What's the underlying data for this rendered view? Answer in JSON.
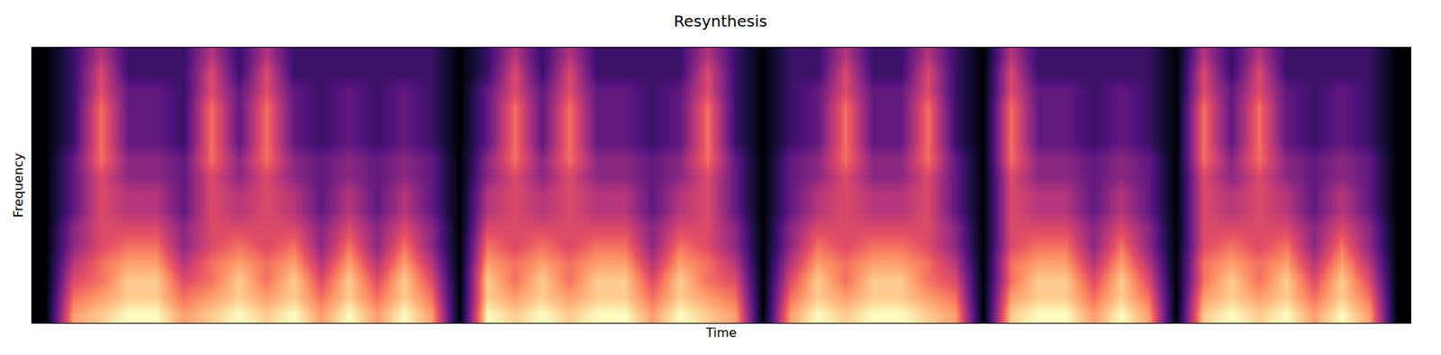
{
  "chart_data": {
    "type": "heatmap",
    "title": "Resynthesis",
    "x_label": "Time",
    "y_label": "Frequency",
    "tick_labels": false,
    "zlim": [
      0,
      10
    ],
    "cells": [
      [
        0,
        8,
        9,
        10,
        10,
        8,
        9,
        10,
        9,
        10,
        8,
        10,
        8,
        10,
        8,
        0,
        10,
        9,
        10,
        9,
        10,
        10,
        8,
        10,
        9,
        8,
        0,
        8,
        10,
        9,
        10,
        10,
        9,
        8,
        0,
        9,
        10,
        10,
        8,
        10,
        8,
        0,
        9,
        10,
        9,
        10,
        8,
        10,
        8,
        0
      ],
      [
        0,
        7,
        8,
        9,
        9,
        7,
        8,
        9,
        8,
        9,
        7,
        9,
        7,
        9,
        7,
        0,
        9,
        8,
        9,
        8,
        9,
        9,
        7,
        9,
        8,
        7,
        0,
        7,
        9,
        8,
        9,
        9,
        8,
        7,
        0,
        8,
        9,
        9,
        7,
        9,
        7,
        0,
        8,
        9,
        8,
        9,
        7,
        9,
        7,
        0
      ],
      [
        0,
        6,
        7,
        9,
        9,
        6,
        7,
        9,
        7,
        9,
        6,
        9,
        6,
        9,
        6,
        0,
        9,
        7,
        9,
        7,
        9,
        9,
        6,
        9,
        7,
        6,
        0,
        6,
        9,
        7,
        9,
        9,
        7,
        6,
        0,
        7,
        9,
        9,
        6,
        9,
        6,
        0,
        7,
        9,
        7,
        9,
        6,
        9,
        6,
        0
      ],
      [
        0,
        5,
        7,
        8,
        8,
        5,
        7,
        8,
        7,
        8,
        5,
        8,
        5,
        8,
        5,
        0,
        8,
        7,
        8,
        7,
        8,
        8,
        5,
        8,
        7,
        5,
        0,
        5,
        8,
        7,
        8,
        8,
        7,
        5,
        0,
        7,
        8,
        8,
        5,
        8,
        5,
        0,
        7,
        8,
        7,
        8,
        5,
        8,
        5,
        0
      ],
      [
        0,
        4,
        6,
        7,
        7,
        4,
        6,
        7,
        6,
        7,
        4,
        7,
        4,
        7,
        4,
        0,
        7,
        6,
        7,
        6,
        7,
        7,
        4,
        7,
        6,
        4,
        0,
        4,
        7,
        6,
        7,
        7,
        6,
        4,
        0,
        6,
        7,
        7,
        4,
        7,
        4,
        0,
        6,
        7,
        6,
        7,
        4,
        7,
        4,
        0
      ],
      [
        0,
        4,
        6,
        6,
        6,
        4,
        6,
        6,
        6,
        6,
        4,
        6,
        4,
        6,
        4,
        0,
        6,
        6,
        6,
        6,
        6,
        6,
        4,
        6,
        6,
        4,
        0,
        4,
        6,
        6,
        6,
        6,
        6,
        4,
        0,
        6,
        6,
        6,
        4,
        6,
        4,
        0,
        6,
        6,
        6,
        6,
        4,
        6,
        4,
        0
      ],
      [
        0,
        3,
        6,
        5,
        5,
        3,
        6,
        5,
        6,
        5,
        3,
        5,
        3,
        5,
        3,
        0,
        5,
        6,
        5,
        6,
        5,
        5,
        3,
        5,
        6,
        3,
        0,
        3,
        5,
        6,
        5,
        5,
        6,
        3,
        0,
        6,
        5,
        5,
        3,
        5,
        3,
        0,
        6,
        5,
        6,
        5,
        3,
        5,
        3,
        0
      ],
      [
        0,
        3,
        6,
        5,
        5,
        3,
        6,
        5,
        6,
        5,
        3,
        5,
        3,
        5,
        3,
        0,
        5,
        6,
        5,
        6,
        5,
        5,
        3,
        5,
        6,
        3,
        0,
        3,
        5,
        6,
        5,
        5,
        6,
        3,
        0,
        6,
        5,
        5,
        3,
        5,
        3,
        0,
        6,
        5,
        6,
        5,
        3,
        5,
        3,
        0
      ],
      [
        0,
        3,
        6,
        4,
        4,
        3,
        6,
        4,
        6,
        4,
        3,
        4,
        3,
        4,
        3,
        0,
        4,
        6,
        4,
        6,
        4,
        4,
        3,
        4,
        6,
        3,
        0,
        3,
        4,
        6,
        4,
        4,
        6,
        3,
        0,
        6,
        4,
        4,
        3,
        4,
        3,
        0,
        6,
        4,
        6,
        4,
        3,
        4,
        3,
        0
      ],
      [
        0,
        3,
        7,
        4,
        4,
        3,
        7,
        4,
        7,
        4,
        3,
        4,
        3,
        4,
        3,
        0,
        4,
        7,
        4,
        7,
        4,
        4,
        3,
        4,
        7,
        3,
        0,
        3,
        4,
        7,
        4,
        4,
        7,
        3,
        0,
        7,
        4,
        4,
        3,
        4,
        3,
        0,
        7,
        4,
        7,
        4,
        3,
        4,
        3,
        0
      ],
      [
        0,
        2,
        7,
        3,
        3,
        2,
        7,
        3,
        7,
        3,
        2,
        3,
        2,
        3,
        2,
        0,
        3,
        7,
        3,
        7,
        3,
        3,
        2,
        3,
        7,
        2,
        0,
        2,
        3,
        7,
        3,
        3,
        7,
        2,
        0,
        7,
        3,
        3,
        2,
        3,
        2,
        0,
        7,
        3,
        7,
        3,
        2,
        3,
        2,
        0
      ],
      [
        0,
        2,
        7,
        3,
        3,
        2,
        7,
        3,
        7,
        3,
        2,
        3,
        2,
        3,
        2,
        0,
        3,
        7,
        3,
        7,
        3,
        3,
        2,
        3,
        7,
        2,
        0,
        2,
        3,
        7,
        3,
        3,
        7,
        2,
        0,
        7,
        3,
        3,
        2,
        3,
        2,
        0,
        7,
        3,
        7,
        3,
        2,
        3,
        2,
        0
      ],
      [
        0,
        2,
        7,
        3,
        3,
        2,
        7,
        3,
        7,
        3,
        2,
        3,
        2,
        3,
        2,
        0,
        3,
        7,
        3,
        7,
        3,
        3,
        2,
        3,
        7,
        2,
        0,
        2,
        3,
        7,
        3,
        3,
        7,
        2,
        0,
        7,
        3,
        3,
        2,
        3,
        2,
        0,
        7,
        3,
        7,
        3,
        2,
        3,
        2,
        0
      ],
      [
        0,
        2,
        6,
        3,
        3,
        2,
        6,
        3,
        6,
        3,
        2,
        3,
        2,
        3,
        2,
        0,
        3,
        6,
        3,
        6,
        3,
        3,
        2,
        3,
        6,
        2,
        0,
        2,
        3,
        6,
        3,
        3,
        6,
        2,
        0,
        6,
        3,
        3,
        2,
        3,
        2,
        0,
        6,
        3,
        6,
        3,
        2,
        3,
        2,
        0
      ],
      [
        0,
        2,
        6,
        2,
        2,
        2,
        6,
        2,
        6,
        2,
        2,
        2,
        2,
        2,
        2,
        0,
        2,
        6,
        2,
        6,
        2,
        2,
        2,
        2,
        6,
        2,
        0,
        2,
        2,
        6,
        2,
        2,
        6,
        2,
        0,
        6,
        2,
        2,
        2,
        2,
        2,
        0,
        6,
        2,
        6,
        2,
        2,
        2,
        2,
        0
      ],
      [
        0,
        2,
        5,
        2,
        2,
        2,
        5,
        2,
        5,
        2,
        2,
        2,
        2,
        2,
        2,
        0,
        2,
        5,
        2,
        5,
        2,
        2,
        2,
        2,
        5,
        2,
        0,
        2,
        2,
        5,
        2,
        2,
        5,
        2,
        0,
        5,
        2,
        2,
        2,
        2,
        2,
        0,
        5,
        2,
        5,
        2,
        2,
        2,
        2,
        0
      ]
    ]
  }
}
